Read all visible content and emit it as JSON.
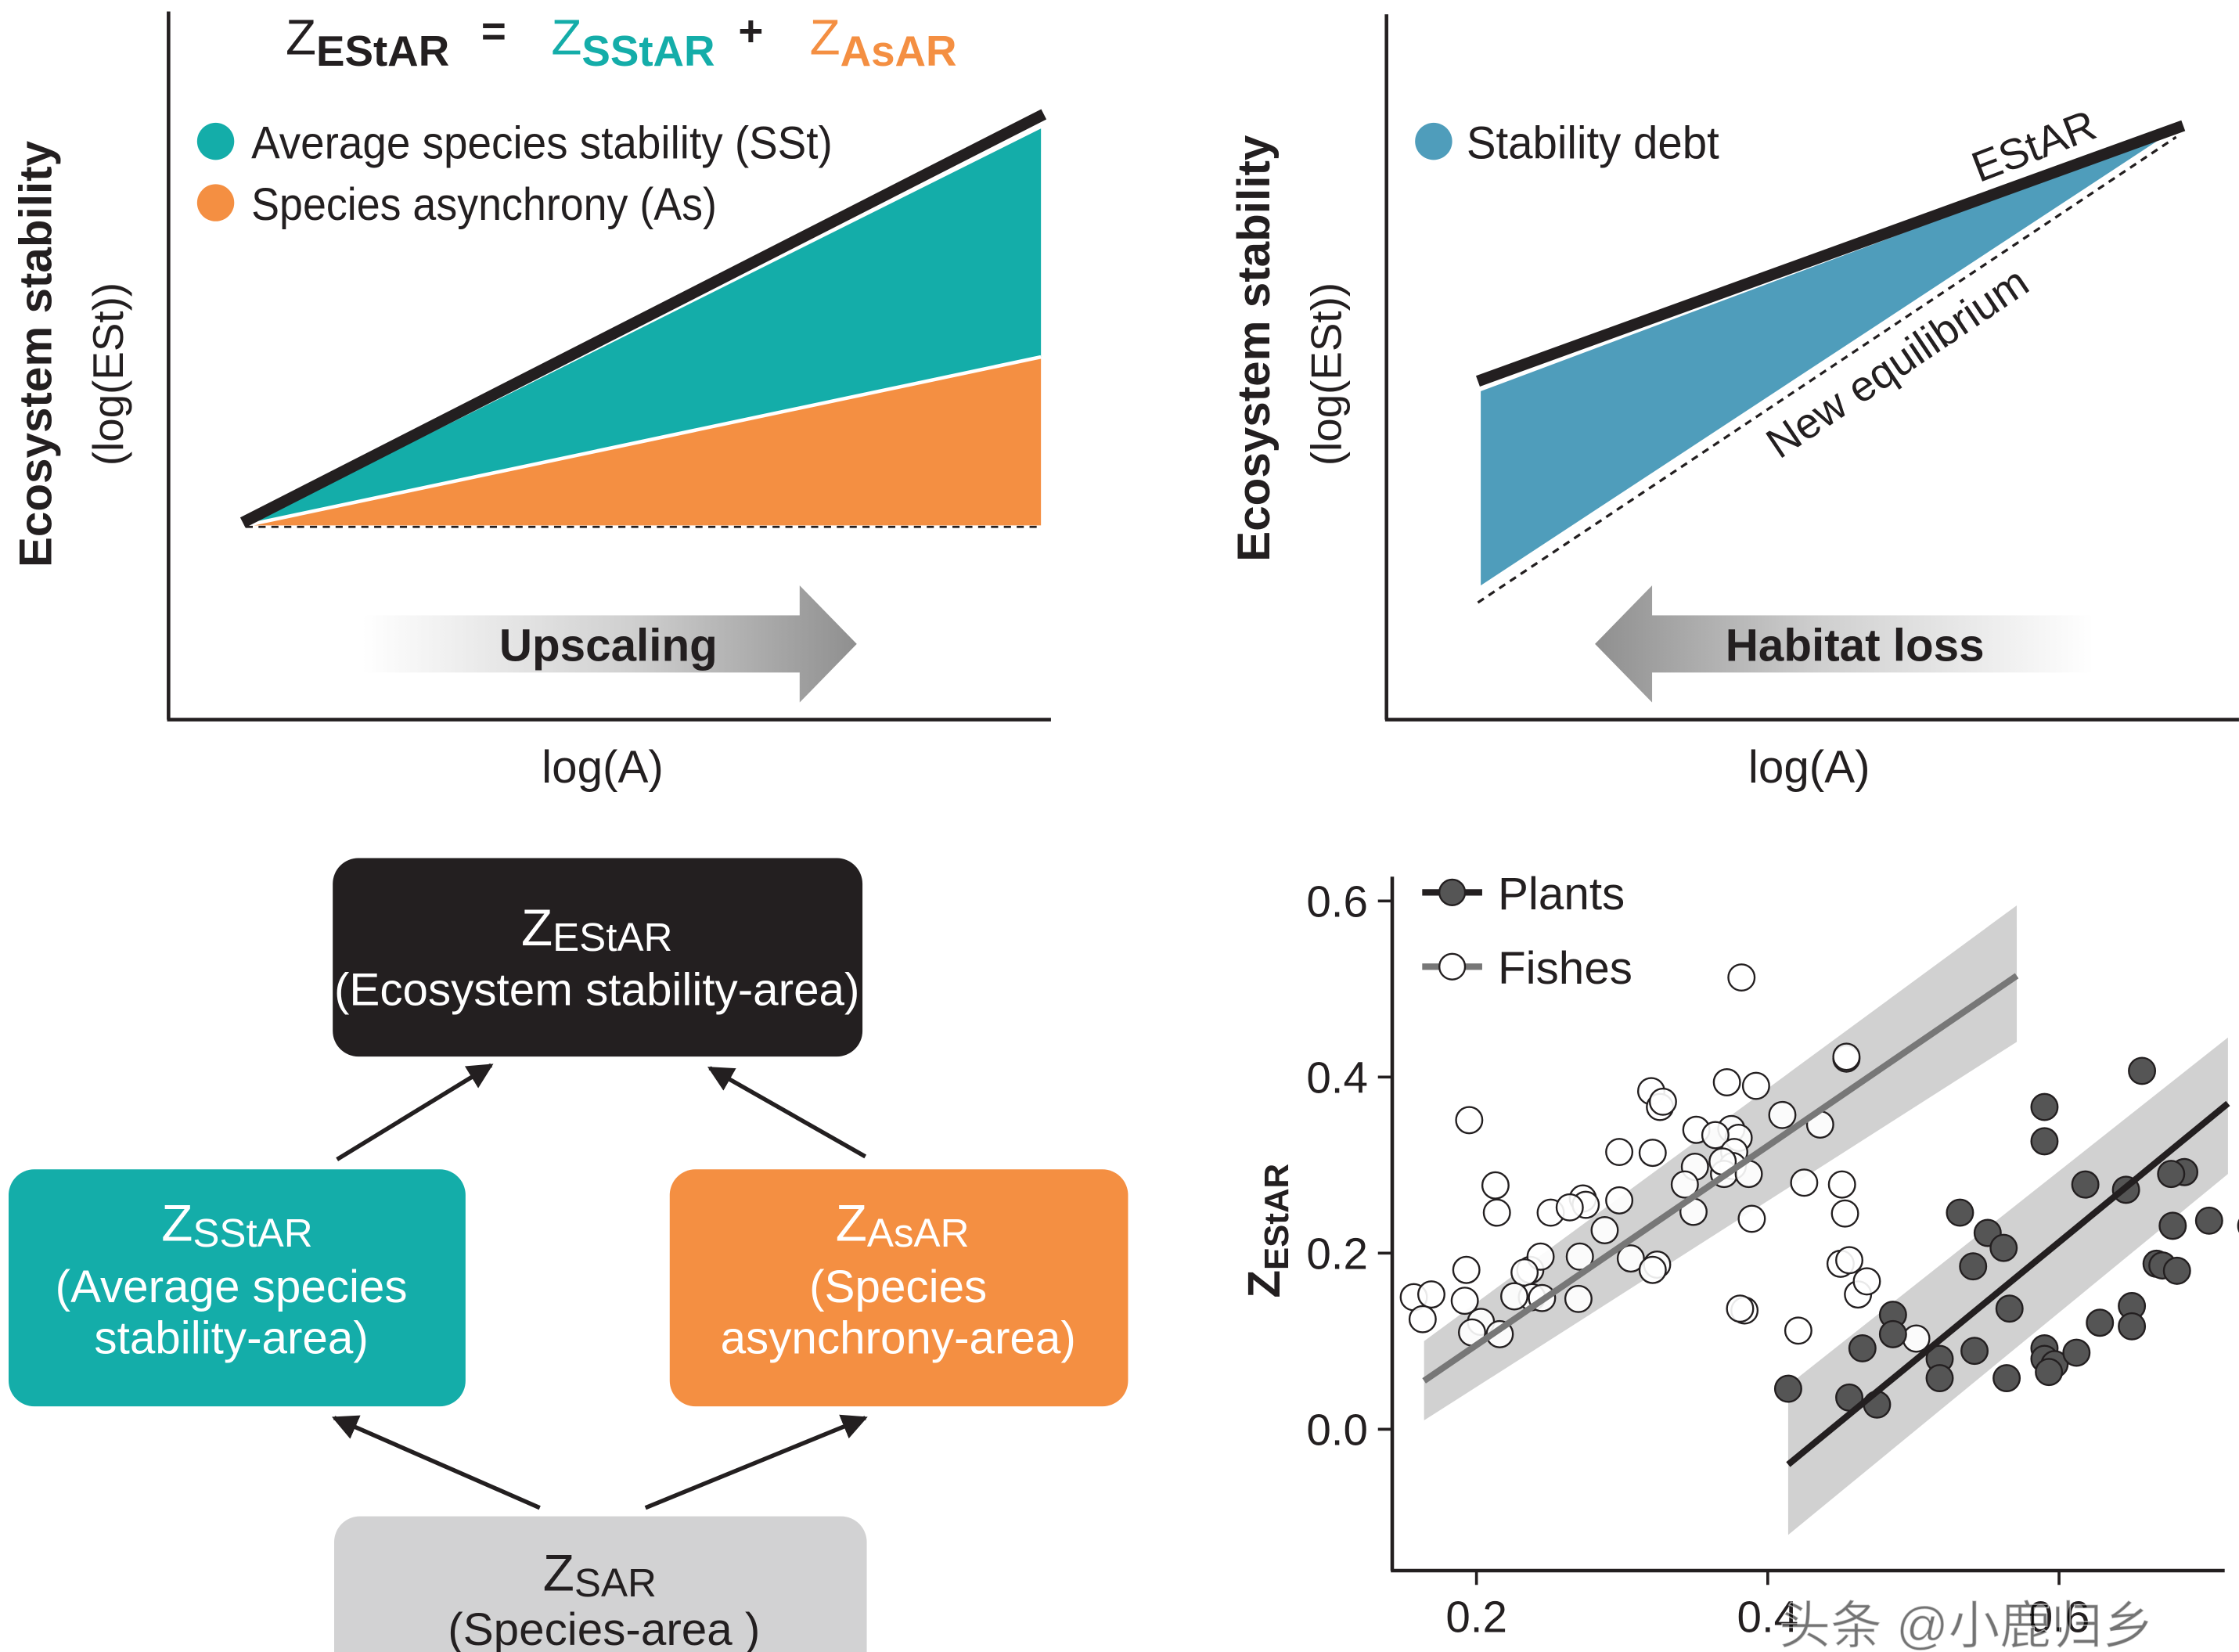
{
  "colors": {
    "teal": "#14ada9",
    "orange": "#f48f42",
    "blue": "#4f9dbb",
    "black": "#231f20",
    "grey_box": "#d2d2d3",
    "plants": "#555555",
    "fishes_line": "#777777"
  },
  "panel_a": {
    "eq_z1": "Z",
    "eq_sub1": "EStAR",
    "eq_equals": "=",
    "eq_z2": "Z",
    "eq_sub2": "SStAR",
    "eq_plus": "+",
    "eq_z3": "Z",
    "eq_sub3": "AsAR",
    "legend_sst": "Average species stability (SSt)",
    "legend_as": "Species asynchrony (As)",
    "ylabel_bold": "Ecosystem stability",
    "ylabel_sub": "(log(ESt))",
    "xlabel": "log(A)",
    "arrow_label": "Upscaling"
  },
  "panel_b": {
    "legend_debt": "Stability debt",
    "line_estar": "EStAR",
    "line_equilibrium": "New equilibrium",
    "ylabel_bold": "Ecosystem stability",
    "ylabel_sub": "(log(ESt))",
    "xlabel": "log(A)",
    "arrow_label": "Habitat loss"
  },
  "panel_c": {
    "top_z": "Z",
    "top_sub": "EStAR",
    "top_desc": "(Ecosystem stability-area)",
    "left_z": "Z",
    "left_sub": "SStAR",
    "left_desc1": "(Average species",
    "left_desc2": "stability-area)",
    "right_z": "Z",
    "right_sub": "AsAR",
    "right_desc1": "(Species",
    "right_desc2": "asynchrony-area)",
    "bottom_z": "Z",
    "bottom_sub": "SAR",
    "bottom_desc": "(Species-area )"
  },
  "watermark": "头条 @小鹿归乡",
  "chart_data": {
    "type": "scatter",
    "ylabel_main": "Z",
    "ylabel_sub": "EStAR",
    "xlabel": "",
    "x_ticks": [
      "0.2",
      "0.4",
      "0.6"
    ],
    "y_ticks": [
      "0.0",
      "0.2",
      "0.4",
      "0.6"
    ],
    "xlim": [
      0.16,
      0.75
    ],
    "ylim": [
      -0.16,
      0.62
    ],
    "series": [
      {
        "name": "Plants",
        "marker": "filled",
        "fit": {
          "x0": 0.414,
          "y0": -0.04,
          "x1": 0.716,
          "y1": 0.37
        },
        "band": {
          "upper": [
            [
              0.414,
              0.05
            ],
            [
              0.716,
              0.445
            ]
          ],
          "lower": [
            [
              0.414,
              -0.12
            ],
            [
              0.716,
              0.29
            ]
          ]
        },
        "points": [
          [
            0.657,
            0.407
          ],
          [
            0.59,
            0.366
          ],
          [
            0.59,
            0.327
          ],
          [
            0.618,
            0.278
          ],
          [
            0.646,
            0.272
          ],
          [
            0.686,
            0.292
          ],
          [
            0.677,
            0.29
          ],
          [
            0.551,
            0.223
          ],
          [
            0.562,
            0.206
          ],
          [
            0.532,
            0.246
          ],
          [
            0.678,
            0.231
          ],
          [
            0.703,
            0.237
          ],
          [
            0.732,
            0.231
          ],
          [
            0.667,
            0.188
          ],
          [
            0.671,
            0.186
          ],
          [
            0.681,
            0.18
          ],
          [
            0.541,
            0.185
          ],
          [
            0.566,
            0.137
          ],
          [
            0.486,
            0.13
          ],
          [
            0.486,
            0.108
          ],
          [
            0.59,
            0.092
          ],
          [
            0.59,
            0.08
          ],
          [
            0.597,
            0.074
          ],
          [
            0.612,
            0.087
          ],
          [
            0.542,
            0.089
          ],
          [
            0.518,
            0.08
          ],
          [
            0.65,
            0.14
          ],
          [
            0.628,
            0.121
          ],
          [
            0.518,
            0.058
          ],
          [
            0.465,
            0.092
          ],
          [
            0.456,
            0.036
          ],
          [
            0.414,
            0.046
          ],
          [
            0.593,
            0.065
          ],
          [
            0.564,
            0.058
          ],
          [
            0.475,
            0.028
          ],
          [
            0.65,
            0.117
          ]
        ]
      },
      {
        "name": "Fishes",
        "marker": "open",
        "fit": {
          "x0": 0.164,
          "y0": 0.055,
          "x1": 0.571,
          "y1": 0.515
        },
        "band": {
          "upper": [
            [
              0.164,
              0.1
            ],
            [
              0.571,
              0.595
            ]
          ],
          "lower": [
            [
              0.164,
              0.01
            ],
            [
              0.571,
              0.44
            ]
          ]
        },
        "points": [
          [
            0.382,
            0.513
          ],
          [
            0.454,
            0.421
          ],
          [
            0.454,
            0.423
          ],
          [
            0.372,
            0.394
          ],
          [
            0.392,
            0.39
          ],
          [
            0.32,
            0.384
          ],
          [
            0.326,
            0.366
          ],
          [
            0.328,
            0.372
          ],
          [
            0.41,
            0.357
          ],
          [
            0.436,
            0.346
          ],
          [
            0.195,
            0.351
          ],
          [
            0.351,
            0.34
          ],
          [
            0.375,
            0.341
          ],
          [
            0.38,
            0.331
          ],
          [
            0.364,
            0.334
          ],
          [
            0.298,
            0.315
          ],
          [
            0.321,
            0.314
          ],
          [
            0.377,
            0.315
          ],
          [
            0.376,
            0.299
          ],
          [
            0.37,
            0.29
          ],
          [
            0.369,
            0.304
          ],
          [
            0.387,
            0.29
          ],
          [
            0.35,
            0.298
          ],
          [
            0.343,
            0.278
          ],
          [
            0.451,
            0.278
          ],
          [
            0.425,
            0.28
          ],
          [
            0.273,
            0.262
          ],
          [
            0.275,
            0.255
          ],
          [
            0.251,
            0.246
          ],
          [
            0.264,
            0.252
          ],
          [
            0.298,
            0.26
          ],
          [
            0.213,
            0.277
          ],
          [
            0.349,
            0.247
          ],
          [
            0.389,
            0.239
          ],
          [
            0.214,
            0.246
          ],
          [
            0.453,
            0.245
          ],
          [
            0.288,
            0.226
          ],
          [
            0.271,
            0.196
          ],
          [
            0.306,
            0.194
          ],
          [
            0.324,
            0.187
          ],
          [
            0.321,
            0.181
          ],
          [
            0.237,
            0.181
          ],
          [
            0.244,
            0.196
          ],
          [
            0.233,
            0.178
          ],
          [
            0.193,
            0.181
          ],
          [
            0.192,
            0.146
          ],
          [
            0.157,
            0.15
          ],
          [
            0.169,
            0.153
          ],
          [
            0.163,
            0.125
          ],
          [
            0.27,
            0.148
          ],
          [
            0.238,
            0.15
          ],
          [
            0.245,
            0.149
          ],
          [
            0.226,
            0.151
          ],
          [
            0.203,
            0.122
          ],
          [
            0.216,
            0.108
          ],
          [
            0.197,
            0.11
          ],
          [
            0.45,
            0.188
          ],
          [
            0.384,
            0.135
          ],
          [
            0.381,
            0.137
          ],
          [
            0.421,
            0.112
          ],
          [
            0.456,
            0.192
          ],
          [
            0.462,
            0.153
          ],
          [
            0.502,
            0.103
          ],
          [
            0.468,
            0.168
          ]
        ]
      }
    ]
  }
}
